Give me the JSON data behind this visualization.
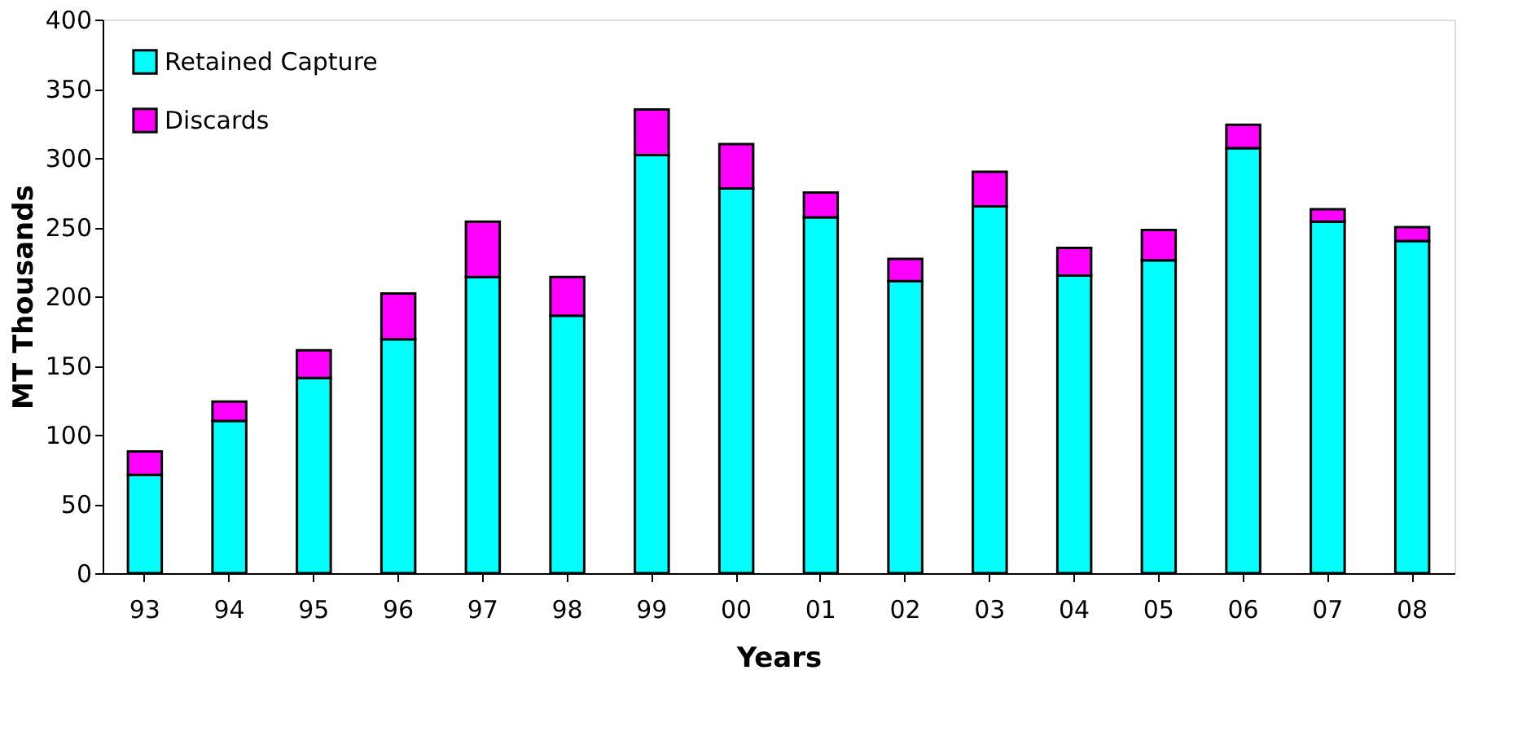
{
  "chart_data": {
    "type": "bar",
    "stacked": true,
    "xlabel": "Years",
    "ylabel": "MT Thousands",
    "categories": [
      "93",
      "94",
      "95",
      "96",
      "97",
      "98",
      "99",
      "00",
      "01",
      "02",
      "03",
      "04",
      "05",
      "06",
      "07",
      "08"
    ],
    "series": [
      {
        "name": "Retained Capture",
        "color": "#00ffff",
        "values": [
          71,
          110,
          141,
          169,
          214,
          186,
          302,
          278,
          257,
          211,
          265,
          215,
          226,
          307,
          254,
          240
        ]
      },
      {
        "name": "Discards",
        "color": "#ff00ff",
        "values": [
          17,
          14,
          20,
          33,
          40,
          28,
          33,
          32,
          18,
          16,
          25,
          20,
          22,
          17,
          9,
          10
        ]
      }
    ],
    "ylim": [
      0,
      400
    ],
    "yticks": [
      0,
      50,
      100,
      150,
      200,
      250,
      300,
      350,
      400
    ],
    "grid": false,
    "legend": "top left"
  }
}
